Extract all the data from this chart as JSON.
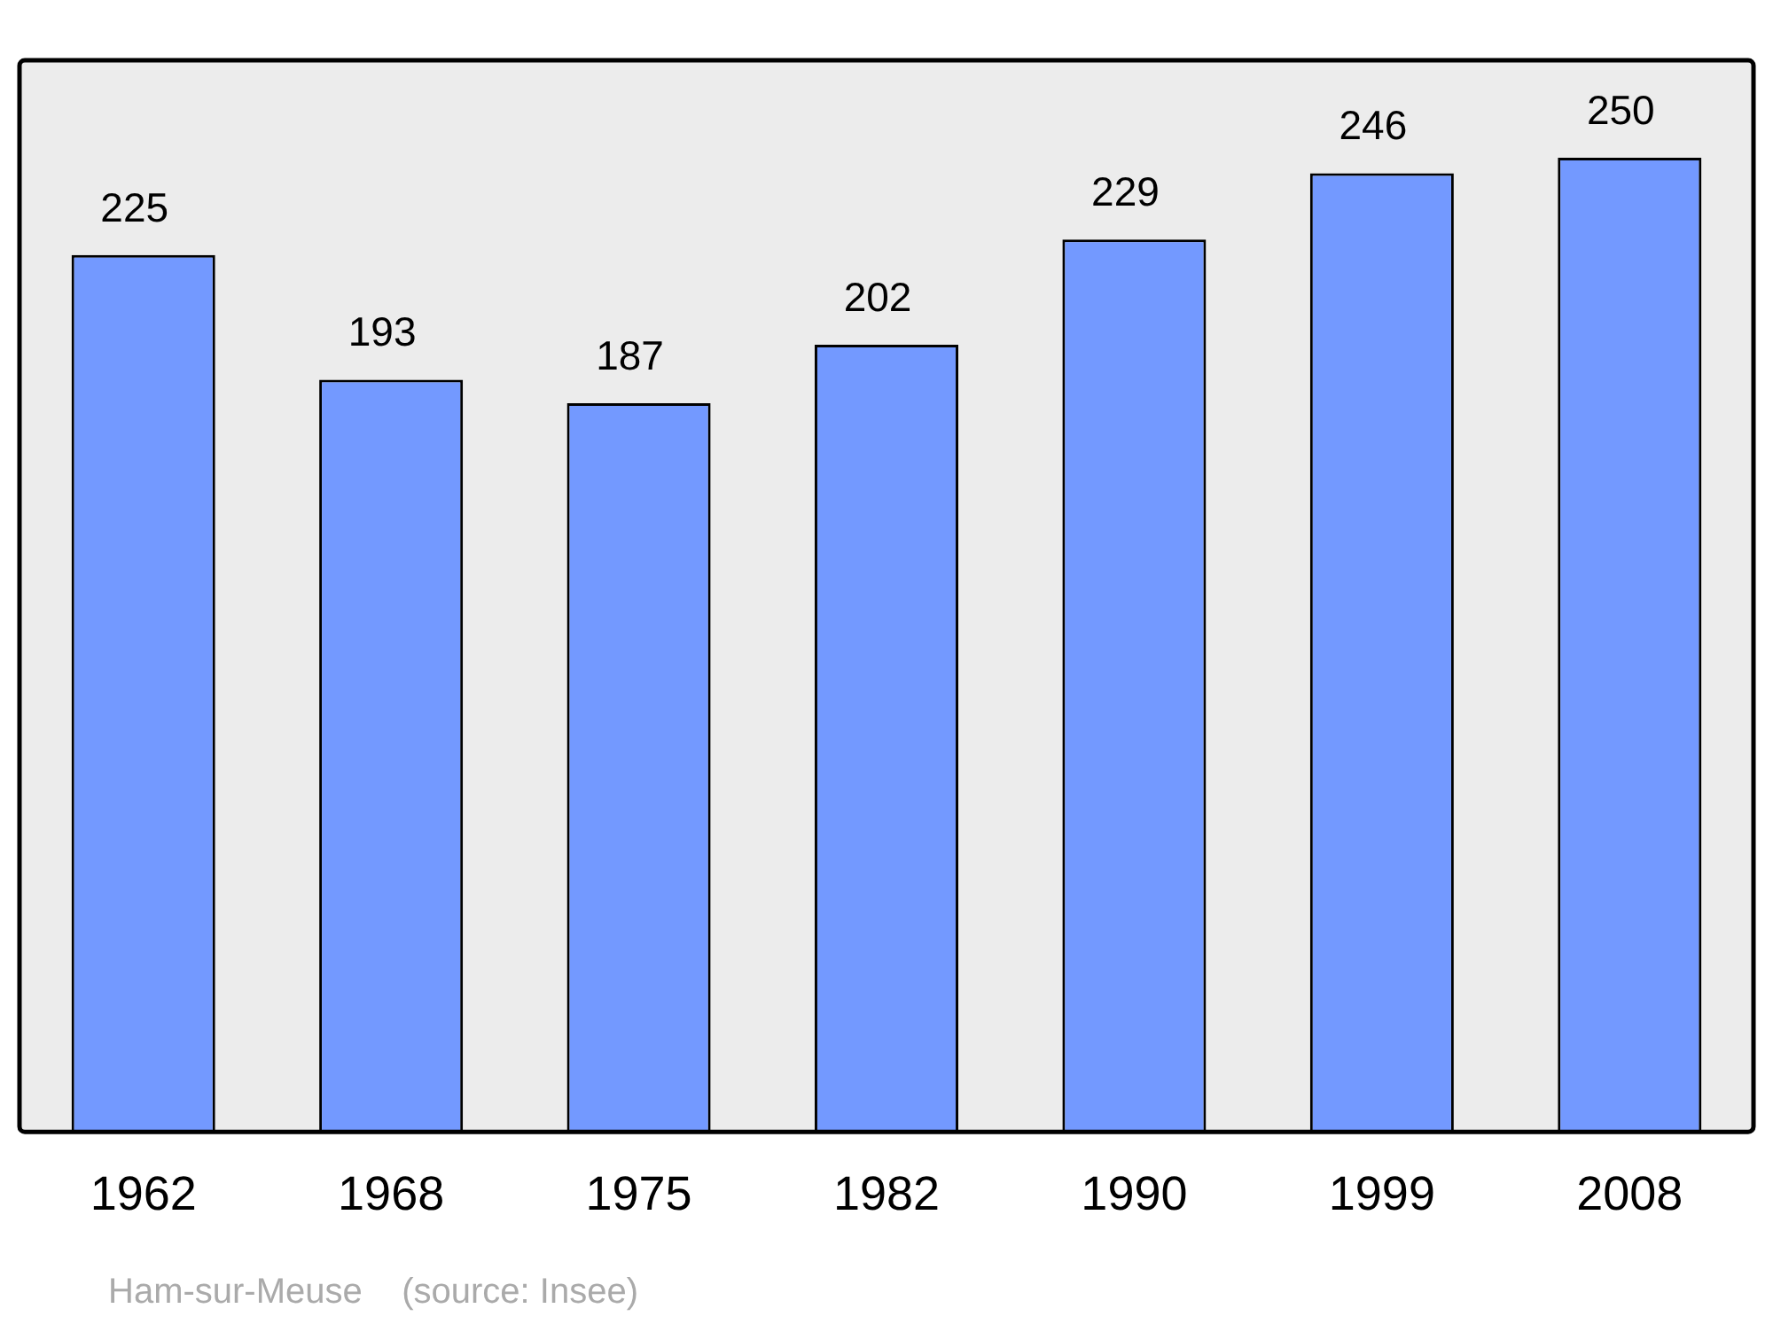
{
  "chart_data": {
    "type": "bar",
    "categories": [
      "1962",
      "1968",
      "1975",
      "1982",
      "1990",
      "1999",
      "2008"
    ],
    "values": [
      225,
      193,
      187,
      202,
      229,
      246,
      250
    ],
    "color": "#7399ff",
    "ylim": [
      0,
      275
    ],
    "data_labels": true,
    "grid": false,
    "legend": false,
    "annotations": [
      "Ham-sur-Meuse    (source: Insee)"
    ]
  }
}
